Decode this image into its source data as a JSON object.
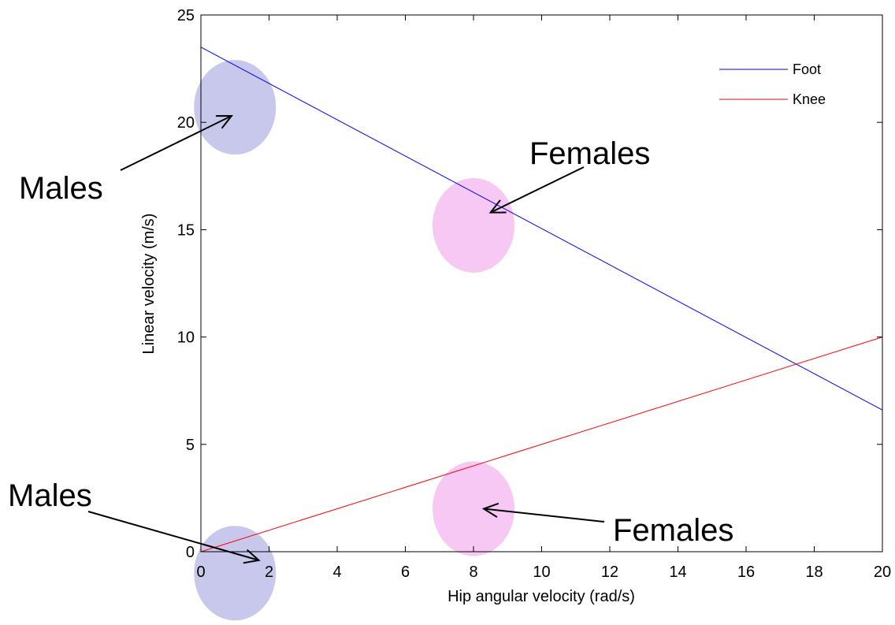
{
  "chart_data": {
    "type": "line",
    "xlabel": "Hip angular velocity (rad/s)",
    "ylabel": "Linear velocity (m/s)",
    "xlim": [
      0,
      20
    ],
    "ylim": [
      0,
      25
    ],
    "xticks": [
      0,
      2,
      4,
      6,
      8,
      10,
      12,
      14,
      16,
      18,
      20
    ],
    "yticks": [
      0,
      5,
      10,
      15,
      20,
      25
    ],
    "grid": false,
    "legend_placement": "top-right",
    "series": [
      {
        "name": "Foot",
        "color": "#0000ff",
        "x": [
          0,
          20
        ],
        "y": [
          23.5,
          6.6
        ]
      },
      {
        "name": "Knee",
        "color": "#ff0000",
        "x": [
          0,
          20
        ],
        "y": [
          0,
          10
        ]
      }
    ],
    "highlights": [
      {
        "group": "Males",
        "x": 1,
        "y": 20.7,
        "color": "#c8c8ec"
      },
      {
        "group": "Females",
        "x": 8,
        "y": 15.2,
        "color": "#f8c8f4"
      },
      {
        "group": "Females",
        "x": 8,
        "y": 2.0,
        "color": "#f8c8f4"
      },
      {
        "group": "Males",
        "x": 1,
        "y": -1.0,
        "color": "#c8c8ec"
      }
    ],
    "annotations": [
      {
        "text": "Males",
        "target_x": 0.9,
        "target_y": 20.3
      },
      {
        "text": "Females",
        "target_x": 8.5,
        "target_y": 15.8
      },
      {
        "text": "Males",
        "target_x": 1.7,
        "target_y": -0.4
      },
      {
        "text": "Females",
        "target_x": 8.3,
        "target_y": 2.0
      }
    ]
  }
}
